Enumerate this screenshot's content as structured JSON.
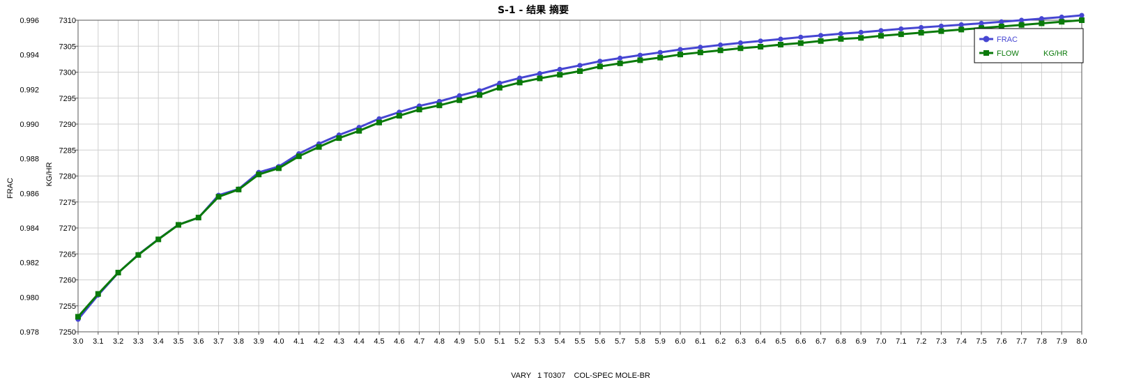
{
  "chart_data": {
    "type": "line",
    "title": "S-1 - 结果 摘要",
    "xlabel": "VARY   1 T0307    COL-SPEC MOLE-BR",
    "y1label": "FRAC",
    "y2label": "KG/HR",
    "xlim": [
      3.0,
      8.0
    ],
    "y1lim": [
      0.978,
      0.996
    ],
    "y2lim": [
      7250,
      7310
    ],
    "x_ticks": [
      "3.0",
      "3.1",
      "3.2",
      "3.3",
      "3.4",
      "3.5",
      "3.6",
      "3.7",
      "3.8",
      "3.9",
      "4.0",
      "4.1",
      "4.2",
      "4.3",
      "4.4",
      "4.5",
      "4.6",
      "4.7",
      "4.8",
      "4.9",
      "5.0",
      "5.1",
      "5.2",
      "5.3",
      "5.4",
      "5.5",
      "5.6",
      "5.7",
      "5.8",
      "5.9",
      "6.0",
      "6.1",
      "6.2",
      "6.3",
      "6.4",
      "6.5",
      "6.6",
      "6.7",
      "6.8",
      "6.9",
      "7.0",
      "7.1",
      "7.2",
      "7.3",
      "7.4",
      "7.5",
      "7.6",
      "7.7",
      "7.8",
      "7.9",
      "8.0"
    ],
    "y1_ticks": [
      "0.978",
      "0.980",
      "0.982",
      "0.984",
      "0.986",
      "0.988",
      "0.990",
      "0.992",
      "0.994",
      "0.996"
    ],
    "y2_ticks": [
      "7250",
      "7255",
      "7260",
      "7265",
      "7270",
      "7275",
      "7280",
      "7285",
      "7290",
      "7295",
      "7300",
      "7305",
      "7310"
    ],
    "grid": true,
    "legend_position": "top-right",
    "x": [
      3.0,
      3.1,
      3.2,
      3.3,
      3.4,
      3.5,
      3.6,
      3.7,
      3.8,
      3.9,
      4.0,
      4.1,
      4.2,
      4.3,
      4.4,
      4.5,
      4.6,
      4.7,
      4.8,
      4.9,
      5.0,
      5.1,
      5.2,
      5.3,
      5.4,
      5.5,
      5.6,
      5.7,
      5.8,
      5.9,
      6.0,
      6.1,
      6.2,
      6.3,
      6.4,
      6.5,
      6.6,
      6.7,
      6.8,
      6.9,
      7.0,
      7.1,
      7.2,
      7.3,
      7.4,
      7.5,
      7.6,
      7.7,
      7.8,
      7.9,
      8.0
    ],
    "series": [
      {
        "name": "FRAC",
        "axis": "y1",
        "color": "#4646d2",
        "marker": "circle",
        "values": [
          0.97872,
          0.98012,
          0.98141,
          0.98246,
          0.98335,
          0.98419,
          0.98459,
          0.98589,
          0.98625,
          0.98721,
          0.98755,
          0.98829,
          0.98886,
          0.98937,
          0.98981,
          0.99031,
          0.99069,
          0.99105,
          0.99131,
          0.99164,
          0.99193,
          0.99236,
          0.99266,
          0.99292,
          0.99316,
          0.99339,
          0.99363,
          0.99381,
          0.99398,
          0.99414,
          0.99431,
          0.99444,
          0.99457,
          0.99469,
          0.9948,
          0.99491,
          0.99502,
          0.99512,
          0.99522,
          0.9953,
          0.9954,
          0.9955,
          0.99558,
          0.99566,
          0.99574,
          0.99582,
          0.99591,
          0.996,
          0.99609,
          0.99618,
          0.99628
        ]
      },
      {
        "name": "FLOW",
        "unit": "KG/HR",
        "axis": "y2",
        "color": "#0a7a0a",
        "marker": "square",
        "values": [
          7252.9,
          7257.3,
          7261.4,
          7264.8,
          7267.8,
          7270.6,
          7272.0,
          7276.0,
          7277.4,
          7280.3,
          7281.5,
          7283.8,
          7285.6,
          7287.3,
          7288.7,
          7290.3,
          7291.6,
          7292.8,
          7293.6,
          7294.6,
          7295.6,
          7297.0,
          7298.0,
          7298.8,
          7299.5,
          7300.2,
          7301.1,
          7301.7,
          7302.3,
          7302.8,
          7303.4,
          7303.8,
          7304.2,
          7304.6,
          7304.9,
          7305.3,
          7305.6,
          7306.0,
          7306.4,
          7306.6,
          7307.0,
          7307.3,
          7307.6,
          7307.9,
          7308.2,
          7308.5,
          7308.8,
          7309.1,
          7309.4,
          7309.7,
          7310.0
        ]
      }
    ]
  }
}
